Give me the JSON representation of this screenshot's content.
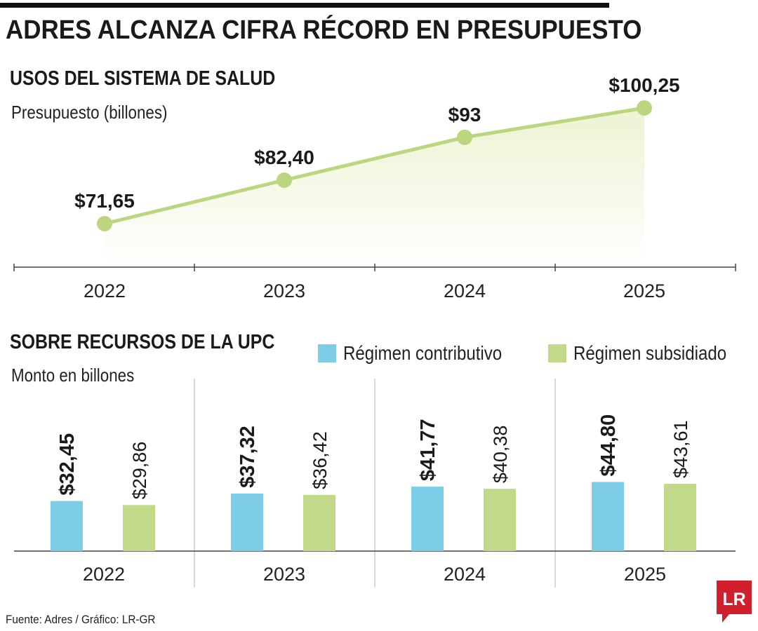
{
  "title": "ADRES ALCANZA CIFRA RÉCORD EN PRESUPUESTO",
  "colors": {
    "line": "#bcd67f",
    "area": "#edf3d2",
    "contributivo": "#7dcde6",
    "subsidiado": "#c3d98a",
    "axis": "#444444",
    "logo": "#d0202e"
  },
  "chart_data": [
    {
      "type": "line",
      "title": "USOS DEL SISTEMA DE SALUD",
      "subtitle": "Presupuesto (billones)",
      "x": [
        "2022",
        "2023",
        "2024",
        "2025"
      ],
      "values": [
        71.65,
        82.4,
        93,
        100.25
      ],
      "data_labels": [
        "$71,65",
        "$82,40",
        "$93",
        "$100,25"
      ],
      "fill": "area gradient under line"
    },
    {
      "type": "bar",
      "title": "SOBRE RECURSOS DE LA UPC",
      "subtitle": "Monto en billones",
      "categories": [
        "2022",
        "2023",
        "2024",
        "2025"
      ],
      "legend_position": "top-right",
      "series": [
        {
          "name": "Régimen contributivo",
          "values": [
            32.45,
            37.32,
            41.77,
            44.8
          ],
          "data_labels": [
            "$32,45",
            "$37,32",
            "$41,77",
            "$44,80"
          ]
        },
        {
          "name": "Régimen subsidiado",
          "values": [
            29.86,
            36.42,
            40.38,
            43.61
          ],
          "data_labels": [
            "$29,86",
            "$36,42",
            "$40,38",
            "$43,61"
          ]
        }
      ]
    }
  ],
  "source": "Fuente: Adres / Gráfico: LR-GR",
  "logo_text": "LR"
}
